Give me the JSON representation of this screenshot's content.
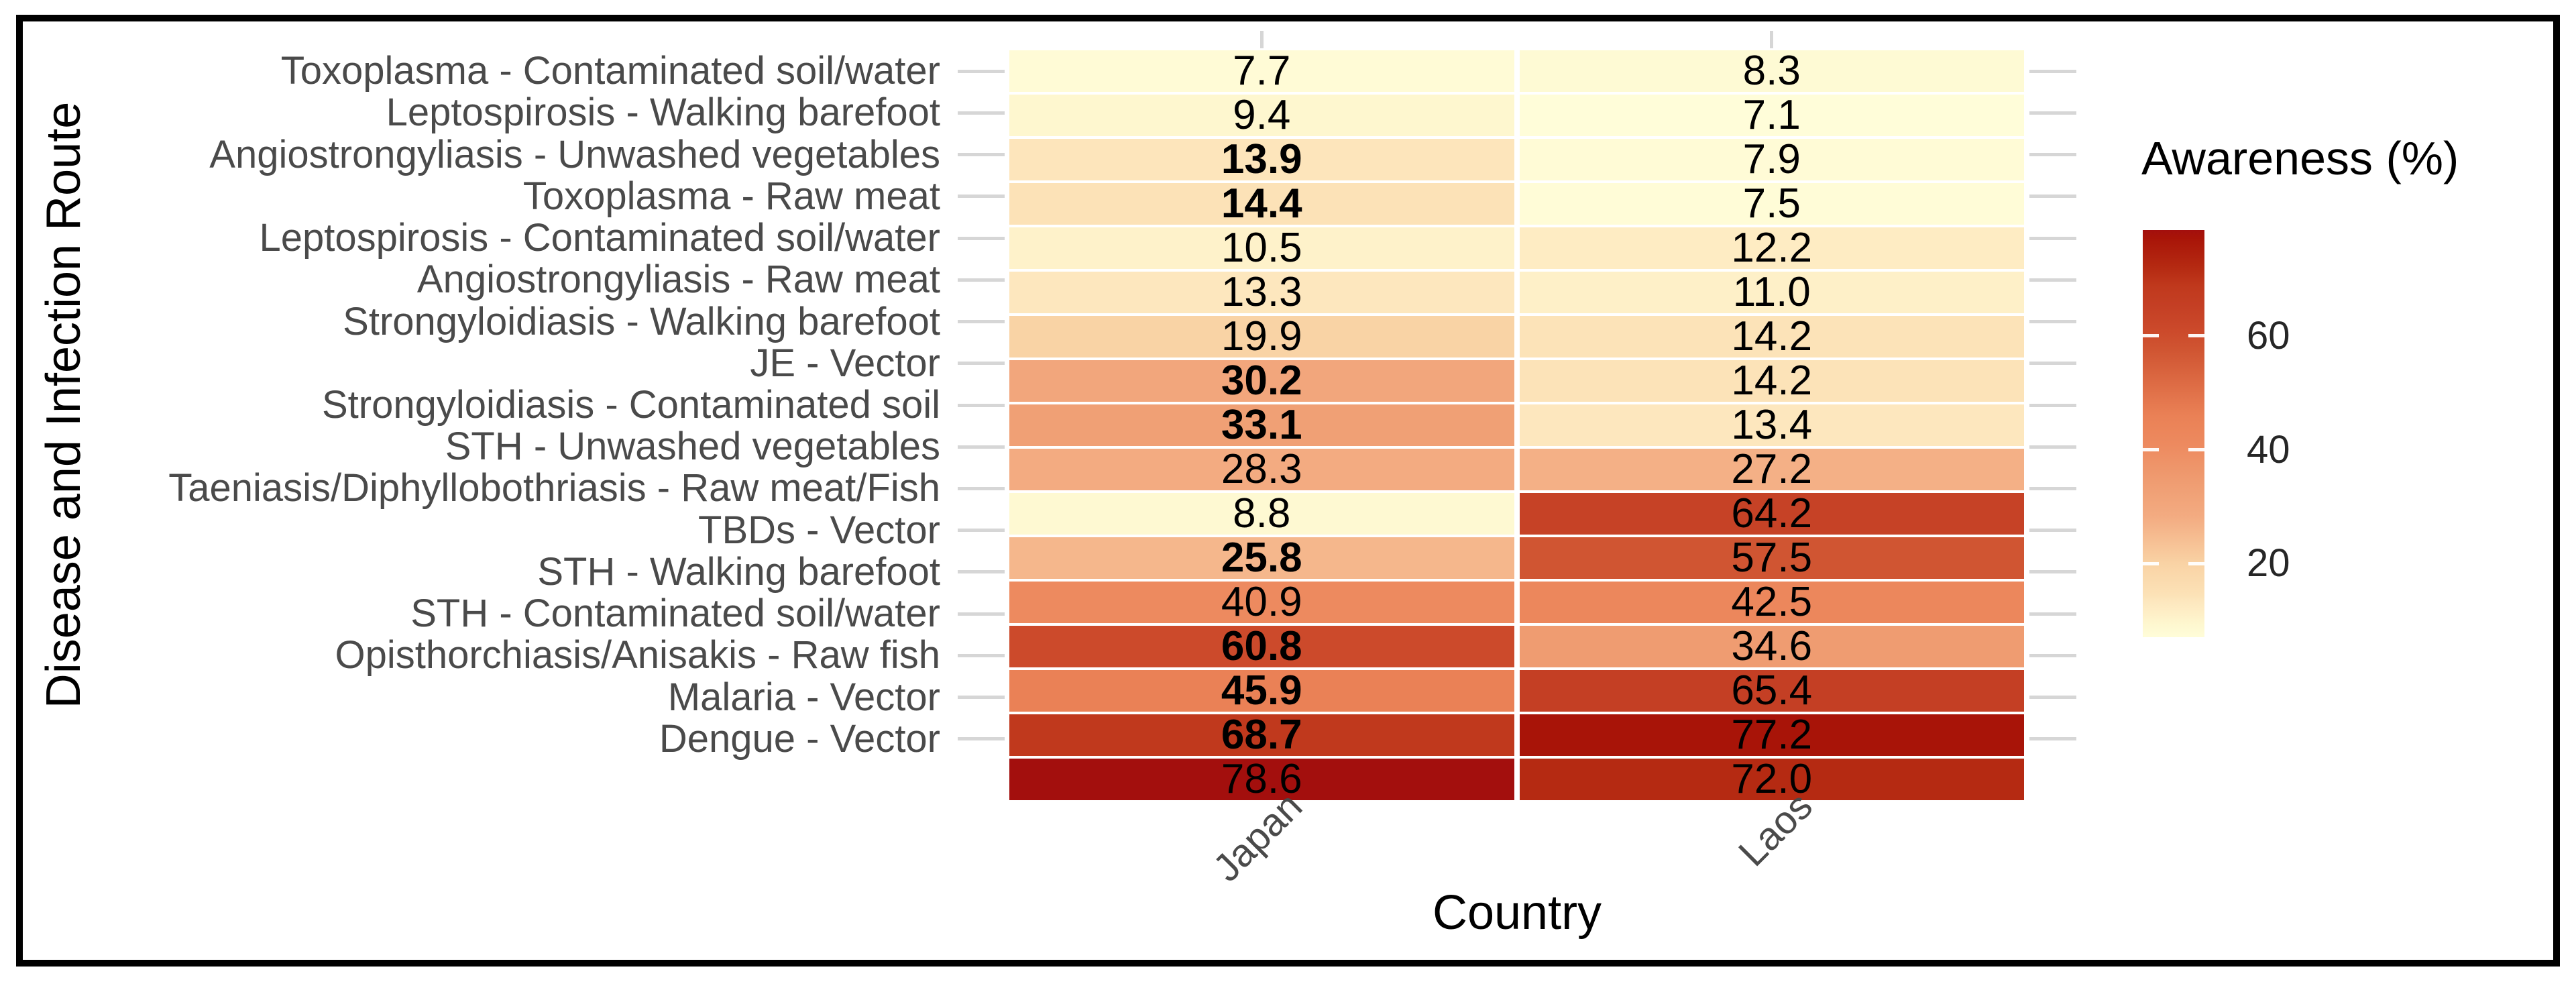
{
  "axes": {
    "x_title": "Country",
    "y_title": "Disease and Infection Route"
  },
  "legend": {
    "title": "Awareness (%)",
    "tick_values": [
      60,
      40,
      20
    ]
  },
  "chart_data": {
    "type": "heatmap",
    "xlabel": "Country",
    "ylabel": "Disease and Infection Route",
    "legend_title": "Awareness (%)",
    "categories_x": [
      "Japan",
      "Laos"
    ],
    "value_unit": "%",
    "value_domain": [
      7.1,
      78.6
    ],
    "legend_ticks": [
      60,
      40,
      20
    ],
    "grid": false,
    "legend_position": "right",
    "rows": [
      {
        "label": "Toxoplasma - Contaminated soil/water",
        "values": [
          7.7,
          8.3
        ],
        "bold": [
          false,
          false
        ]
      },
      {
        "label": "Leptospirosis - Walking barefoot",
        "values": [
          9.4,
          7.1
        ],
        "bold": [
          false,
          false
        ]
      },
      {
        "label": "Angiostrongyliasis - Unwashed vegetables",
        "values": [
          13.9,
          7.9
        ],
        "bold": [
          true,
          false
        ]
      },
      {
        "label": "Toxoplasma - Raw meat",
        "values": [
          14.4,
          7.5
        ],
        "bold": [
          true,
          false
        ]
      },
      {
        "label": "Leptospirosis - Contaminated soil/water",
        "values": [
          10.5,
          12.2
        ],
        "bold": [
          false,
          false
        ]
      },
      {
        "label": "Angiostrongyliasis - Raw meat",
        "values": [
          13.3,
          11.0
        ],
        "bold": [
          false,
          false
        ]
      },
      {
        "label": "Strongyloidiasis - Walking barefoot",
        "values": [
          19.9,
          14.2
        ],
        "bold": [
          false,
          false
        ]
      },
      {
        "label": "JE - Vector",
        "values": [
          30.2,
          14.2
        ],
        "bold": [
          true,
          false
        ]
      },
      {
        "label": "Strongyloidiasis - Contaminated soil",
        "values": [
          33.1,
          13.4
        ],
        "bold": [
          true,
          false
        ]
      },
      {
        "label": "STH - Unwashed vegetables",
        "values": [
          28.3,
          27.2
        ],
        "bold": [
          false,
          false
        ]
      },
      {
        "label": "Taeniasis/Diphyllobothriasis - Raw meat/Fish",
        "values": [
          8.8,
          64.2
        ],
        "bold": [
          false,
          false
        ]
      },
      {
        "label": "TBDs - Vector",
        "values": [
          25.8,
          57.5
        ],
        "bold": [
          true,
          false
        ]
      },
      {
        "label": "STH - Walking barefoot",
        "values": [
          40.9,
          42.5
        ],
        "bold": [
          false,
          false
        ]
      },
      {
        "label": "STH - Contaminated soil/water",
        "values": [
          60.8,
          34.6
        ],
        "bold": [
          true,
          false
        ]
      },
      {
        "label": "Opisthorchiasis/Anisakis - Raw fish",
        "values": [
          45.9,
          65.4
        ],
        "bold": [
          true,
          false
        ]
      },
      {
        "label": "Malaria - Vector",
        "values": [
          68.7,
          77.2
        ],
        "bold": [
          true,
          false
        ]
      },
      {
        "label": "Dengue - Vector",
        "values": [
          78.6,
          72.0
        ],
        "bold": [
          false,
          false
        ]
      }
    ],
    "color_scale": {
      "stops": [
        [
          7.1,
          "#FFFDD9"
        ],
        [
          9.4,
          "#FEF7CF"
        ],
        [
          11.0,
          "#FEF0C8"
        ],
        [
          13.4,
          "#FDE7BE"
        ],
        [
          14.4,
          "#FCE2B7"
        ],
        [
          19.9,
          "#F9D3A5"
        ],
        [
          25.8,
          "#F5B78C"
        ],
        [
          28.3,
          "#F3AB81"
        ],
        [
          34.6,
          "#EF9C71"
        ],
        [
          40.9,
          "#ED8A5F"
        ],
        [
          45.9,
          "#EA8156"
        ],
        [
          57.5,
          "#D05532"
        ],
        [
          60.8,
          "#CC4A2B"
        ],
        [
          65.4,
          "#C43F24"
        ],
        [
          68.7,
          "#C0391D"
        ],
        [
          72.0,
          "#B52A12"
        ],
        [
          77.2,
          "#A81408"
        ],
        [
          78.6,
          "#A30F0D"
        ]
      ]
    },
    "style_colors": {
      "axis_tick_color": "#D6D6D6",
      "axis_text_color": "#4A4A4A",
      "value_text_color": "#000000",
      "frame_color": "#000000",
      "background": "#FFFFFF"
    }
  }
}
